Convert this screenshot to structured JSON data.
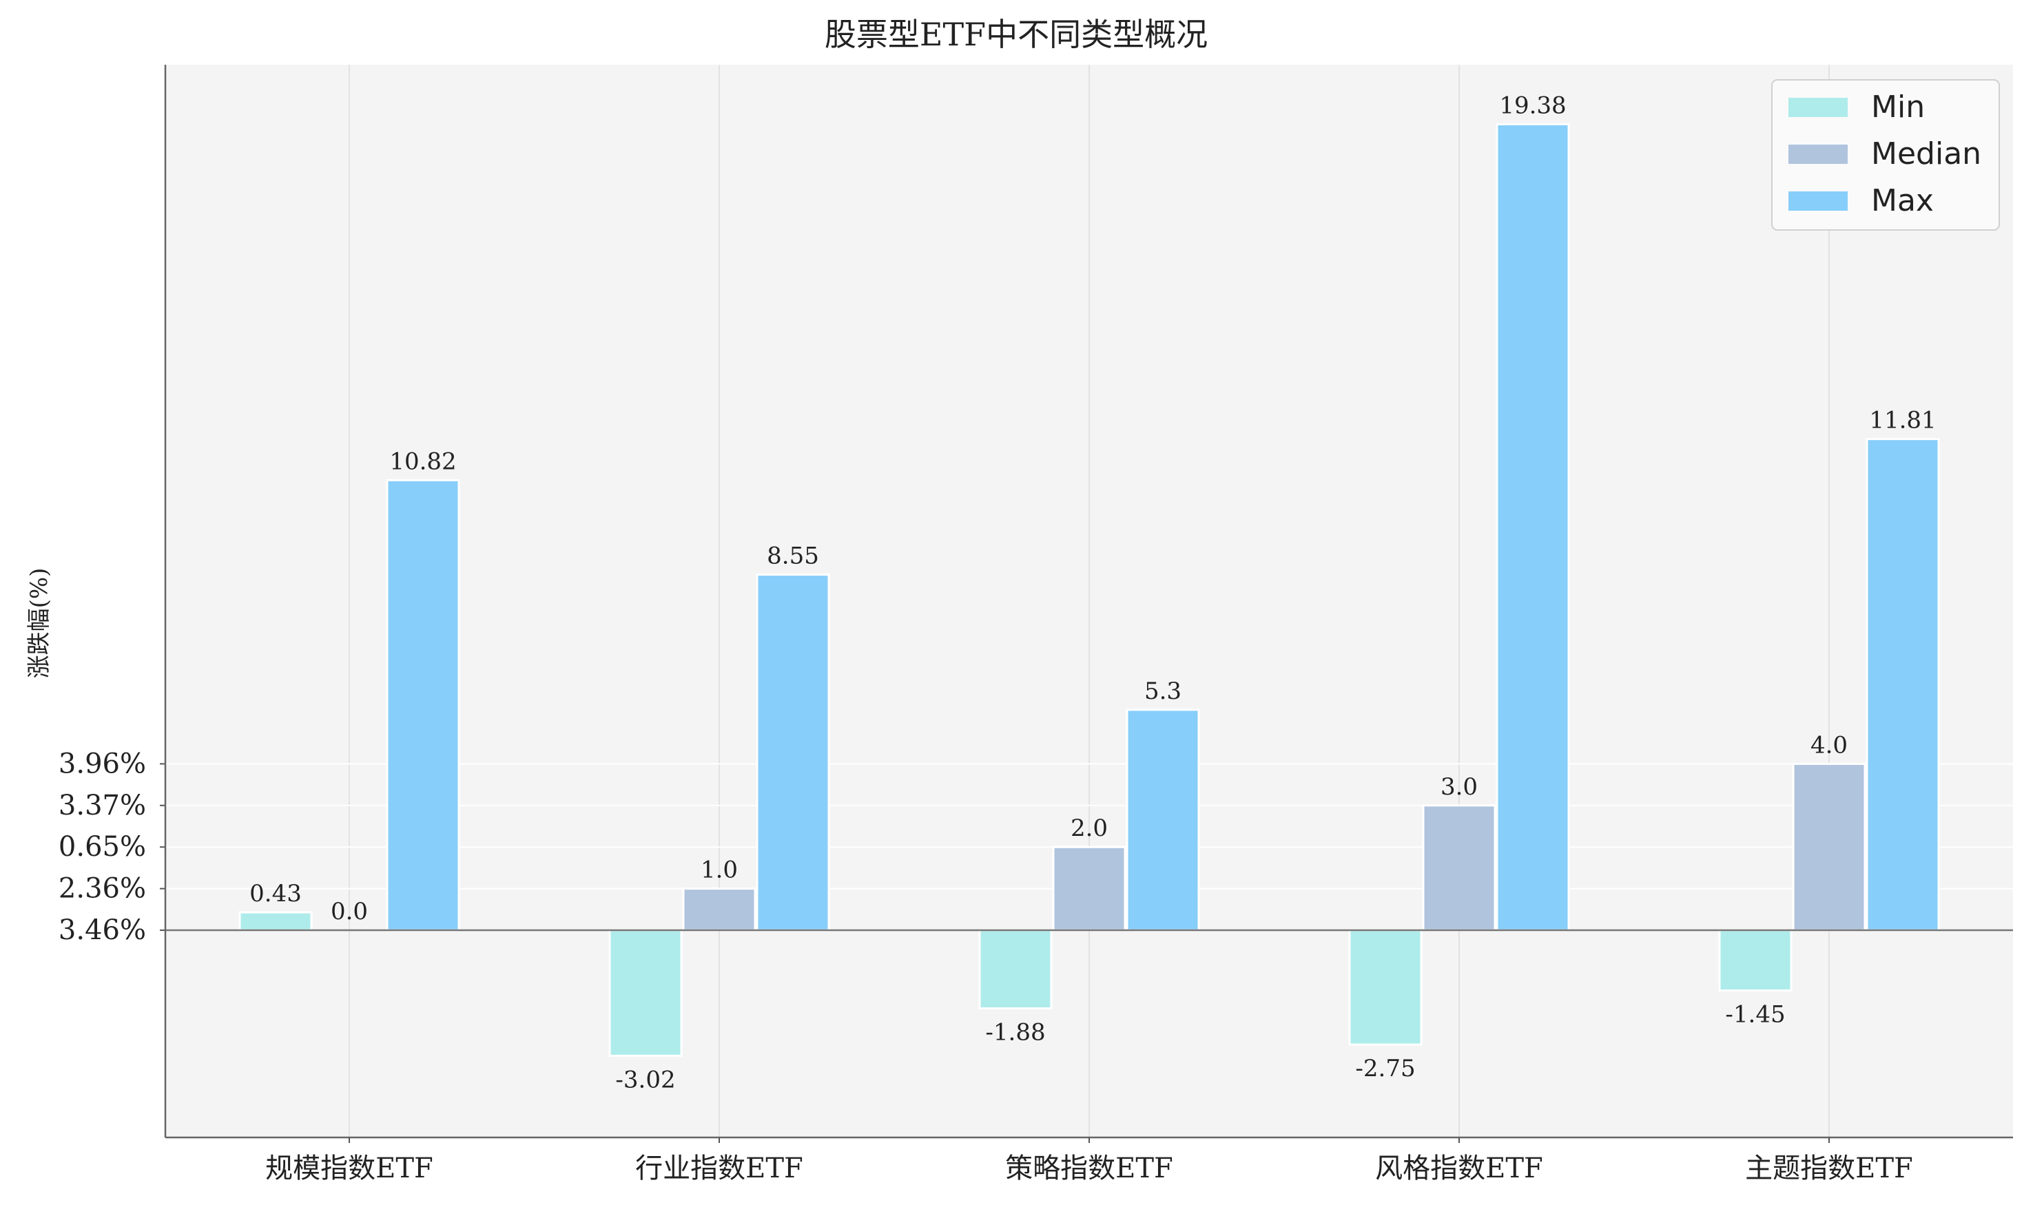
{
  "chart_data": {
    "type": "bar",
    "title": "股票型ETF中不同类型概况",
    "xlabel": "",
    "ylabel": "涨跌幅(%)",
    "categories": [
      "规模指数ETF",
      "行业指数ETF",
      "策略指数ETF",
      "风格指数ETF",
      "主题指数ETF"
    ],
    "series": [
      {
        "name": "Min",
        "color": "#aeeceb",
        "values": [
          0.43,
          -3.02,
          -1.88,
          -2.75,
          -1.45
        ],
        "labels": [
          "0.43",
          "-3.02",
          "-1.88",
          "-2.75",
          "-1.45"
        ]
      },
      {
        "name": "Median",
        "color": "#b0c4de",
        "values": [
          0.0,
          1.0,
          2.0,
          3.0,
          4.0
        ],
        "labels": [
          "0.0",
          "1.0",
          "2.0",
          "3.0",
          "4.0"
        ]
      },
      {
        "name": "Max",
        "color": "#87cefa",
        "values": [
          10.82,
          8.55,
          5.3,
          19.38,
          11.81
        ],
        "labels": [
          "10.82",
          "8.55",
          "5.3",
          "19.38",
          "11.81"
        ]
      }
    ],
    "ylim": [
      -5,
      21
    ],
    "yticks": [
      {
        "value": 0,
        "label": "3.46%"
      },
      {
        "value": 1,
        "label": "2.36%"
      },
      {
        "value": 2,
        "label": "0.65%"
      },
      {
        "value": 3,
        "label": "3.37%"
      },
      {
        "value": 4,
        "label": "3.96%"
      }
    ],
    "grid": true,
    "legend_position": "top-right",
    "plot_background": "#f4f4f4"
  }
}
